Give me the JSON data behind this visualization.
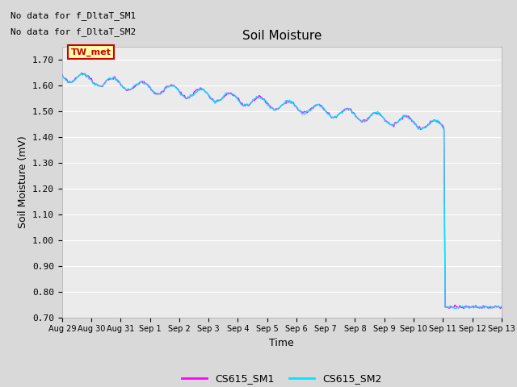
{
  "title": "Soil Moisture",
  "xlabel": "Time",
  "ylabel": "Soil Moisture (mV)",
  "ylim": [
    0.7,
    1.75
  ],
  "yticks": [
    0.7,
    0.8,
    0.9,
    1.0,
    1.1,
    1.2,
    1.3,
    1.4,
    1.5,
    1.6,
    1.7
  ],
  "no_data_text1": "No data for f_DltaT_SM1",
  "no_data_text2": "No data for f_DltaT_SM2",
  "tw_met_label": "TW_met",
  "tw_met_bg": "#ffffaa",
  "tw_met_border": "#cc0000",
  "tw_met_text_color": "#cc0000",
  "legend_labels": [
    "CS615_SM1",
    "CS615_SM2"
  ],
  "bg_color": "#d9d9d9",
  "plot_bg_color": "#ebebeb",
  "grid_color": "#ffffff",
  "x_tick_labels": [
    "Aug 29",
    "Aug 30",
    "Aug 31",
    "Sep 1",
    "Sep 2",
    "Sep 3",
    "Sep 4",
    "Sep 5",
    "Sep 6",
    "Sep 7",
    "Sep 8",
    "Sep 9",
    "Sep 10",
    "Sep 11",
    "Sep 12",
    "Sep 13"
  ],
  "cs615_sm1_color": "#ff00ff",
  "cs615_sm2_color": "#00e5ff",
  "line_width": 1.0,
  "figsize": [
    6.4,
    4.8
  ],
  "dpi": 100
}
